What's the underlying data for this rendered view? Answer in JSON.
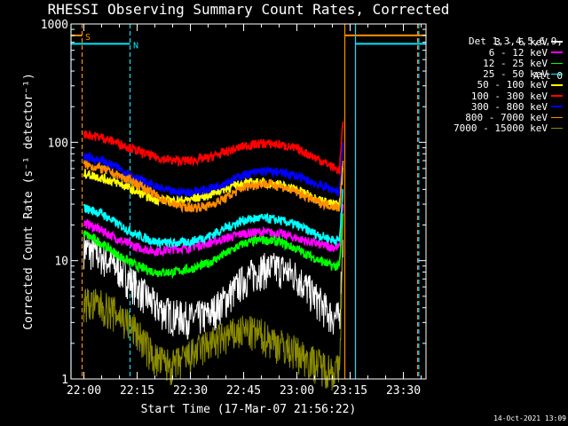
{
  "chart_data": {
    "type": "line",
    "title": "RHESSI Observing Summary Count Rates, Corrected",
    "xlabel": "Start Time (17-Mar-07 21:56:22)",
    "ylabel": "Corrected Count Rate (s⁻¹ detector⁻¹)",
    "y_scale": "log",
    "ylim": [
      1,
      1000
    ],
    "y_ticks": [
      1,
      10,
      100,
      1000
    ],
    "y_tick_labels": [
      "1",
      "10",
      "100",
      "1000"
    ],
    "xlim": [
      "21:56:22",
      "23:36:22"
    ],
    "x_ticks": [
      "22:00",
      "22:15",
      "22:30",
      "22:45",
      "23:00",
      "23:15",
      "23:30"
    ],
    "detectors": "Det 1,3,4,5,6,9,",
    "attenuator": "Att 0",
    "background": "#000000",
    "grid": false,
    "legend_position": "top-right outside",
    "series": [
      {
        "name": "3 - 6 keV",
        "color": "#ffffff",
        "x": [
          "22:00",
          "22:05",
          "22:10",
          "22:15",
          "22:20",
          "22:25",
          "22:30",
          "22:35",
          "22:40",
          "22:45",
          "22:50",
          "22:55",
          "23:00",
          "23:05",
          "23:10",
          "23:12",
          "23:13"
        ],
        "values": [
          13,
          11,
          8.5,
          6,
          4.2,
          3.5,
          3.3,
          3.5,
          4.8,
          7,
          8.6,
          8.8,
          7.5,
          5,
          3.4,
          3.3,
          15
        ]
      },
      {
        "name": "6 - 12 keV",
        "color": "#ff00ff",
        "x": [
          "22:00",
          "22:05",
          "22:10",
          "22:15",
          "22:20",
          "22:25",
          "22:30",
          "22:35",
          "22:40",
          "22:45",
          "22:50",
          "22:55",
          "23:00",
          "23:05",
          "23:10",
          "23:12",
          "23:13"
        ],
        "values": [
          21,
          18,
          15,
          13,
          12,
          12.5,
          13,
          14,
          15.5,
          17,
          17.5,
          17,
          15.5,
          14,
          13,
          13,
          30
        ]
      },
      {
        "name": "12 - 25 keV",
        "color": "#00ff00",
        "x": [
          "22:00",
          "22:05",
          "22:10",
          "22:15",
          "22:20",
          "22:25",
          "22:30",
          "22:35",
          "22:40",
          "22:45",
          "22:50",
          "22:55",
          "23:00",
          "23:05",
          "23:10",
          "23:12",
          "23:13"
        ],
        "values": [
          17,
          14,
          11,
          9,
          8,
          8,
          8.5,
          9.5,
          11.5,
          14,
          15,
          14.5,
          12.5,
          10.5,
          9,
          9,
          25
        ]
      },
      {
        "name": "25 - 50 keV",
        "color": "#00ffff",
        "x": [
          "22:00",
          "22:05",
          "22:10",
          "22:15",
          "22:20",
          "22:25",
          "22:30",
          "22:35",
          "22:40",
          "22:45",
          "22:50",
          "22:55",
          "23:00",
          "23:05",
          "23:10",
          "23:12",
          "23:13"
        ],
        "values": [
          28,
          25,
          20,
          16.5,
          14.5,
          14,
          14.5,
          16,
          19,
          22,
          23,
          22,
          20,
          17,
          15,
          15,
          40
        ]
      },
      {
        "name": "50 - 100 keV",
        "color": "#ffff00",
        "x": [
          "22:00",
          "22:05",
          "22:10",
          "22:15",
          "22:20",
          "22:25",
          "22:30",
          "22:35",
          "22:40",
          "22:45",
          "22:50",
          "22:55",
          "23:00",
          "23:05",
          "23:10",
          "23:12",
          "23:13"
        ],
        "values": [
          55,
          50,
          45,
          38,
          33,
          32,
          33,
          36,
          41,
          45,
          46,
          44,
          40,
          34,
          30,
          30,
          60
        ]
      },
      {
        "name": "100 - 300 keV",
        "color": "#ff0000",
        "x": [
          "22:00",
          "22:05",
          "22:10",
          "22:15",
          "22:20",
          "22:25",
          "22:30",
          "22:35",
          "22:40",
          "22:45",
          "22:50",
          "22:55",
          "23:00",
          "23:05",
          "23:10",
          "23:12",
          "23:13"
        ],
        "values": [
          118,
          110,
          98,
          85,
          75,
          70,
          70,
          74,
          83,
          93,
          98,
          96,
          88,
          75,
          62,
          58,
          150
        ]
      },
      {
        "name": "300 - 800 keV",
        "color": "#0000ff",
        "x": [
          "22:00",
          "22:05",
          "22:10",
          "22:15",
          "22:20",
          "22:25",
          "22:30",
          "22:35",
          "22:40",
          "22:45",
          "22:50",
          "22:55",
          "23:00",
          "23:05",
          "23:10",
          "23:12",
          "23:13"
        ],
        "values": [
          76,
          70,
          60,
          50,
          42,
          38,
          38,
          40,
          46,
          53,
          57,
          56,
          52,
          45,
          40,
          38,
          100
        ]
      },
      {
        "name": "800 - 7000 keV",
        "color": "#ff8c00",
        "x": [
          "22:00",
          "22:05",
          "22:10",
          "22:15",
          "22:20",
          "22:25",
          "22:30",
          "22:35",
          "22:40",
          "22:45",
          "22:50",
          "22:55",
          "23:00",
          "23:05",
          "23:10",
          "23:12",
          "23:13"
        ],
        "values": [
          65,
          60,
          52,
          45,
          36,
          30,
          28,
          29,
          34,
          42,
          45,
          43,
          38,
          32,
          29,
          28,
          70
        ]
      },
      {
        "name": "7000 - 15000 keV",
        "color": "#8b8b00",
        "x": [
          "22:00",
          "22:05",
          "22:10",
          "22:15",
          "22:20",
          "22:25",
          "22:30",
          "22:35",
          "22:40",
          "22:45",
          "22:50",
          "22:55",
          "23:00",
          "23:05",
          "23:10",
          "23:12",
          "23:13"
        ],
        "values": [
          4.5,
          4.2,
          3.5,
          2.5,
          1.5,
          1.3,
          1.6,
          2,
          2.3,
          2.6,
          2.4,
          2,
          1.7,
          1.4,
          1.2,
          1.2,
          20
        ]
      }
    ],
    "annotations": [
      {
        "label": "S",
        "color": "#ff8c00",
        "x_start": "21:56:22",
        "x_end": "21:59:30",
        "y": 800
      },
      {
        "label": "N",
        "color": "#00e5ff",
        "x_start": "21:56:22",
        "x_end": "22:13:00",
        "y": 680
      },
      {
        "label": "",
        "color": "#ff8c00",
        "x_start": "23:13:30",
        "x_end": "23:36:22",
        "y": 800
      },
      {
        "label": "",
        "color": "#00e5ff",
        "x_start": "23:16:30",
        "x_end": "23:36:22",
        "y": 680
      }
    ],
    "vertical_markers": [
      {
        "x": "21:56:22",
        "color": "#00e5ff",
        "style": "solid"
      },
      {
        "x": "21:59:30",
        "color": "#ff8c00",
        "style": "dashed"
      },
      {
        "x": "22:13:00",
        "color": "#00e5ff",
        "style": "dashed"
      },
      {
        "x": "23:13:30",
        "color": "#ff8c00",
        "style": "solid"
      },
      {
        "x": "23:16:30",
        "color": "#00e5ff",
        "style": "solid"
      },
      {
        "x": "23:34:00",
        "color": "#ff8c00",
        "style": "dashed"
      },
      {
        "x": "23:34:20",
        "color": "#00e5ff",
        "style": "dashed"
      }
    ]
  },
  "timestamp": "14-Oct-2021 13:09"
}
